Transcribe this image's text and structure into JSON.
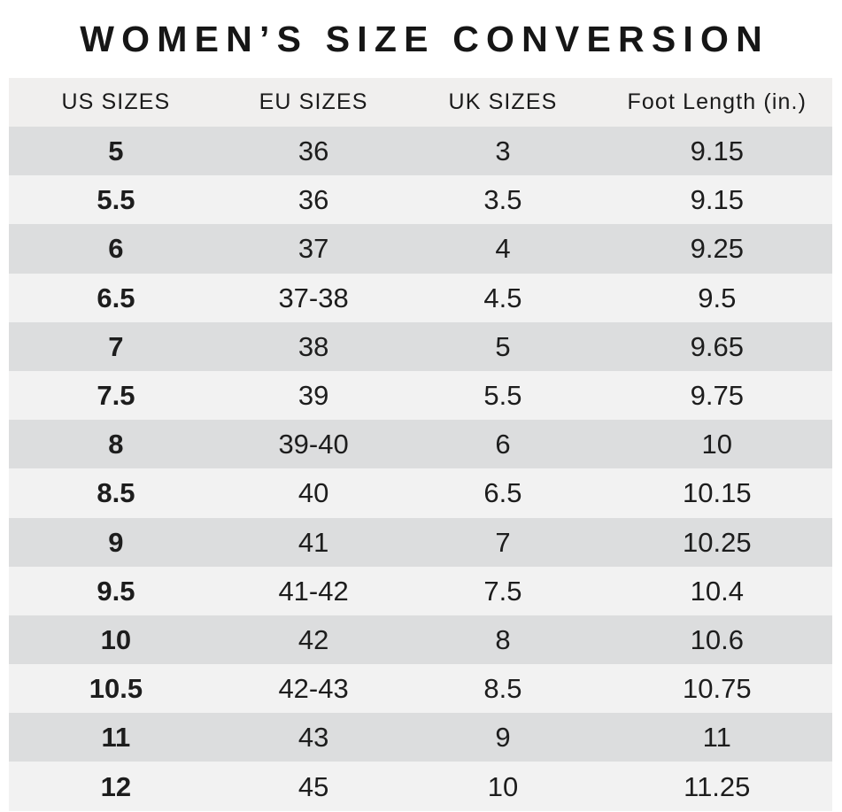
{
  "chart_data": {
    "type": "table",
    "title": "WOMEN’S SIZE CONVERSION",
    "columns": [
      "US SIZES",
      "EU SIZES",
      "UK SIZES",
      "Foot Length (in.)"
    ],
    "rows": [
      [
        "5",
        "36",
        "3",
        "9.15"
      ],
      [
        "5.5",
        "36",
        "3.5",
        "9.15"
      ],
      [
        "6",
        "37",
        "4",
        "9.25"
      ],
      [
        "6.5",
        "37-38",
        "4.5",
        "9.5"
      ],
      [
        "7",
        "38",
        "5",
        "9.65"
      ],
      [
        "7.5",
        "39",
        "5.5",
        "9.75"
      ],
      [
        "8",
        "39-40",
        "6",
        "10"
      ],
      [
        "8.5",
        "40",
        "6.5",
        "10.15"
      ],
      [
        "9",
        "41",
        "7",
        "10.25"
      ],
      [
        "9.5",
        "41-42",
        "7.5",
        "10.4"
      ],
      [
        "10",
        "42",
        "8",
        "10.6"
      ],
      [
        "10.5",
        "42-43",
        "8.5",
        "10.75"
      ],
      [
        "11",
        "43",
        "9",
        "11"
      ],
      [
        "12",
        "45",
        "10",
        "11.25"
      ]
    ],
    "layout_hints": {
      "stripe_pattern": "first data row dark, alternating",
      "bold_column": "US SIZES"
    }
  },
  "colors": {
    "background": "#ffffff",
    "header_bg": "#f0efee",
    "row_dark": "#dcddde",
    "row_light": "#f2f2f2",
    "text": "#1d1d1d",
    "title_text": "#161616"
  }
}
